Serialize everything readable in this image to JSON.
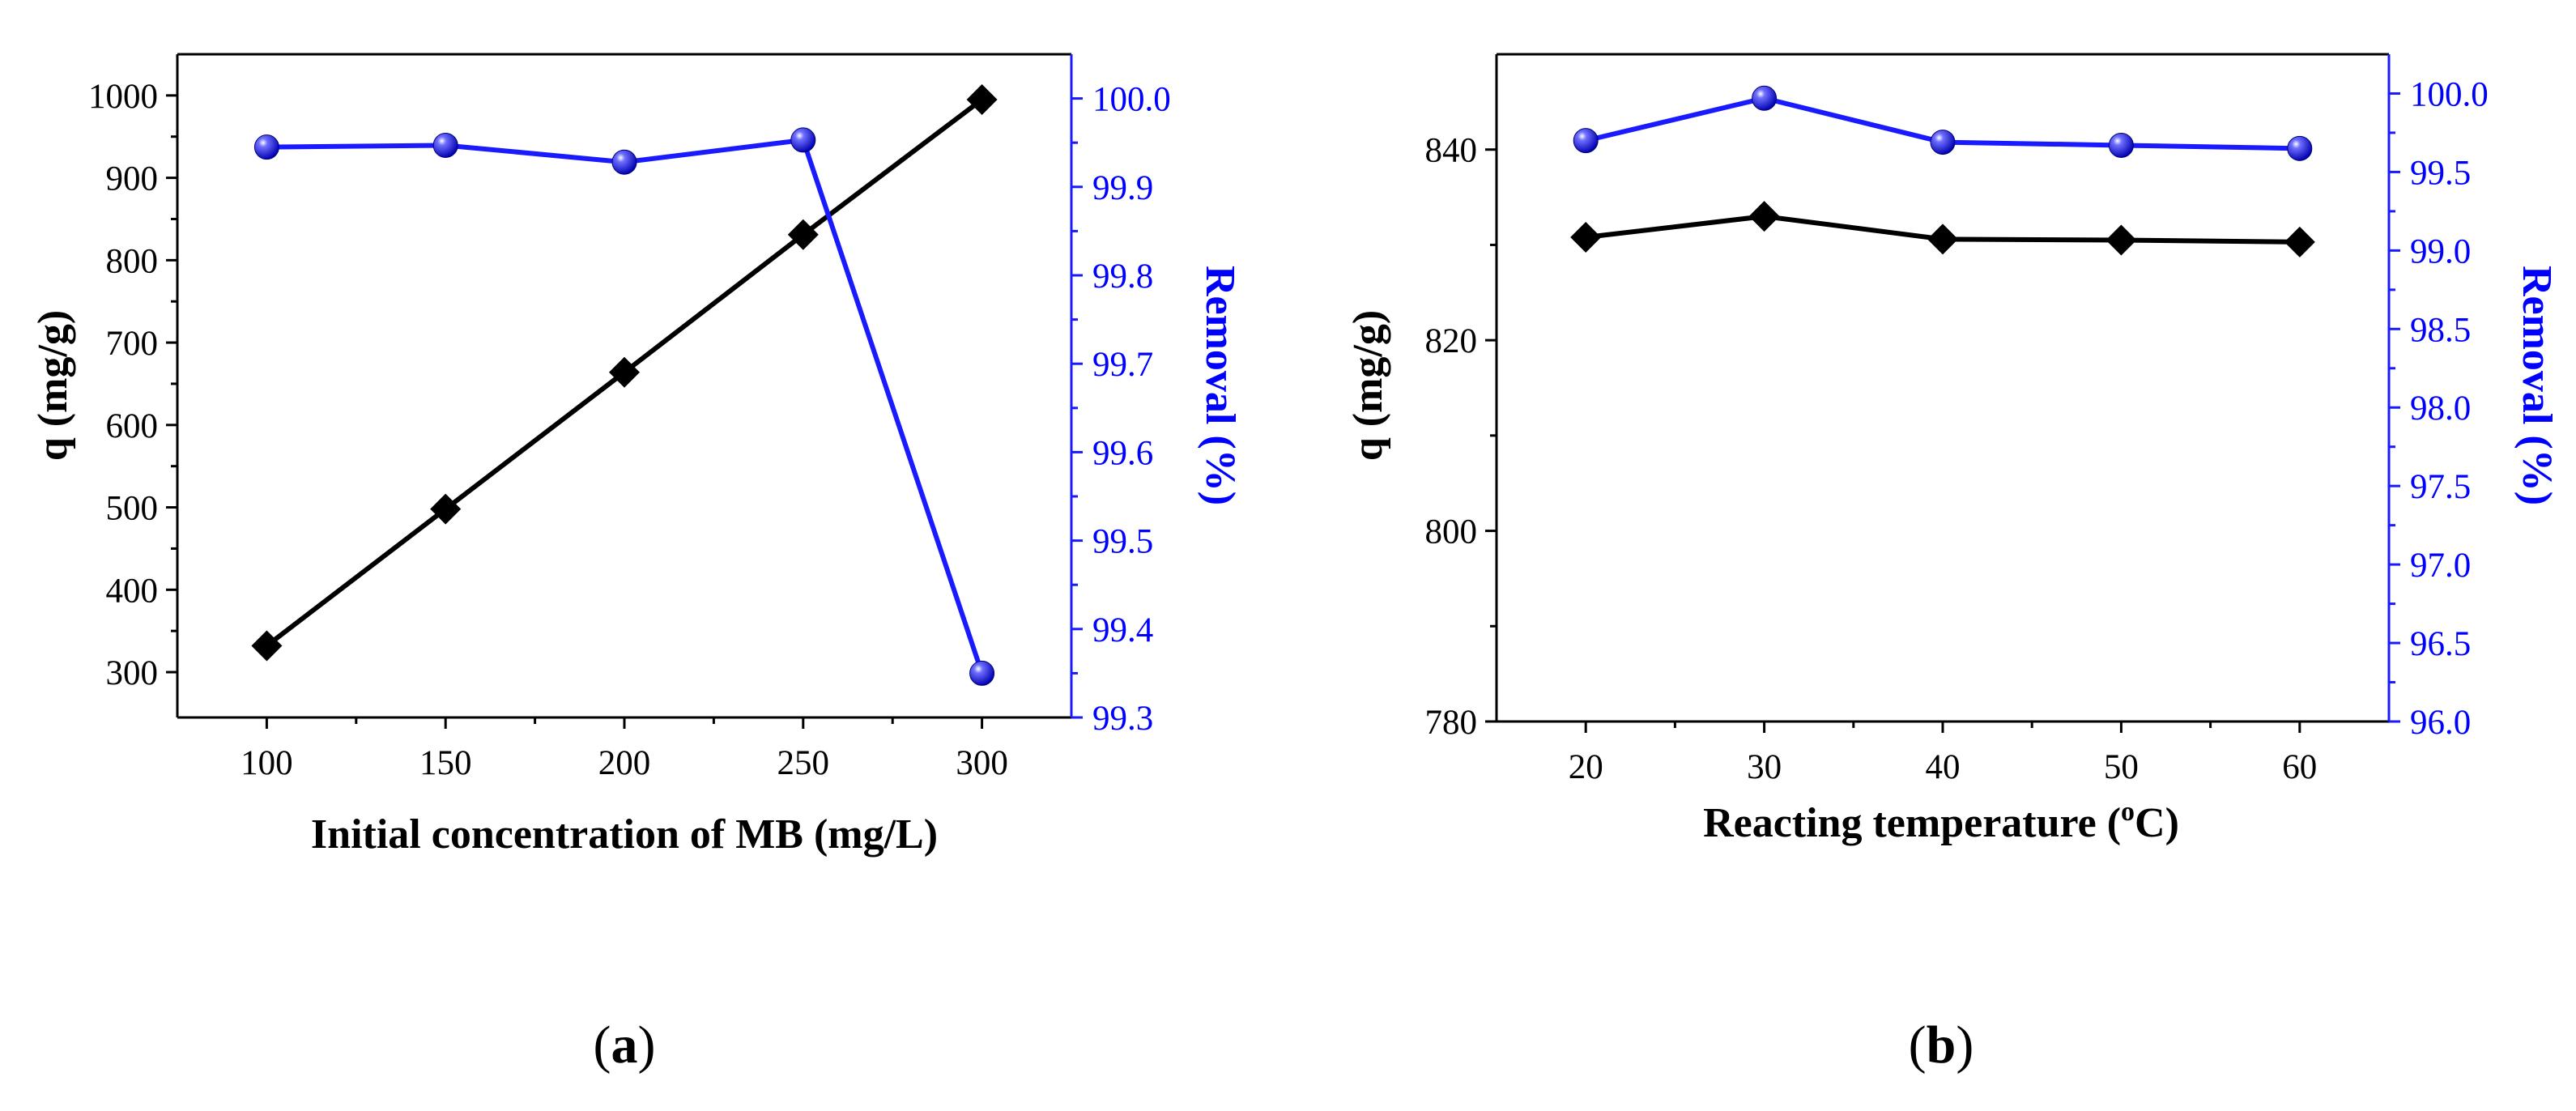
{
  "colors": {
    "q_series": "#000000",
    "removal_series": "#1a1aff",
    "axis_right": "#0000ff"
  },
  "chart_data": [
    {
      "panel_label_prefix": "(",
      "panel_label_letter": "a",
      "panel_label_suffix": ")",
      "type": "line",
      "xlabel": "Initial concentration of MB (mg/L)",
      "xticks": [
        100,
        150,
        200,
        250,
        300
      ],
      "xlim": [
        75,
        325
      ],
      "y_left": {
        "label": "q (mg/g)",
        "ticks": [
          300,
          400,
          500,
          600,
          700,
          800,
          900,
          1000
        ],
        "lim": [
          245,
          1050
        ]
      },
      "y_right": {
        "label": "Removal (%)",
        "ticks": [
          "99.3",
          "99.4",
          "99.5",
          "99.6",
          "99.7",
          "99.8",
          "99.9",
          "100.0"
        ],
        "lim": [
          99.3,
          100.05
        ]
      },
      "series": [
        {
          "name": "q",
          "axis": "left",
          "marker": "diamond",
          "x": [
            100,
            150,
            200,
            250,
            300
          ],
          "values": [
            332,
            498,
            664,
            831,
            995
          ]
        },
        {
          "name": "Removal",
          "axis": "right",
          "marker": "sphere",
          "x": [
            100,
            150,
            200,
            250,
            300
          ],
          "values": [
            99.945,
            99.947,
            99.928,
            99.953,
            99.35
          ]
        }
      ]
    },
    {
      "panel_label_prefix": "(",
      "panel_label_letter": "b",
      "panel_label_suffix": ")",
      "type": "line",
      "xlabel_main": "Reacting temperature (",
      "xlabel_sup": "o",
      "xlabel_end": "C)",
      "xticks": [
        20,
        30,
        40,
        50,
        60
      ],
      "xlim": [
        15,
        65
      ],
      "y_left": {
        "label": "q (mg/g)",
        "ticks": [
          780,
          800,
          820,
          840
        ],
        "lim": [
          780,
          850
        ]
      },
      "y_right": {
        "label": "Removal (%)",
        "ticks": [
          "96.0",
          "96.5",
          "97.0",
          "97.5",
          "98.0",
          "98.5",
          "99.0",
          "99.5",
          "100.0"
        ],
        "lim": [
          96.0,
          100.25
        ]
      },
      "series": [
        {
          "name": "q",
          "axis": "left",
          "marker": "diamond",
          "x": [
            20,
            30,
            40,
            50,
            60
          ],
          "values": [
            830.8,
            833.0,
            830.6,
            830.5,
            830.3
          ]
        },
        {
          "name": "Removal",
          "axis": "right",
          "marker": "sphere",
          "x": [
            20,
            30,
            40,
            50,
            60
          ],
          "values": [
            99.7,
            99.97,
            99.69,
            99.67,
            99.65
          ]
        }
      ]
    }
  ]
}
